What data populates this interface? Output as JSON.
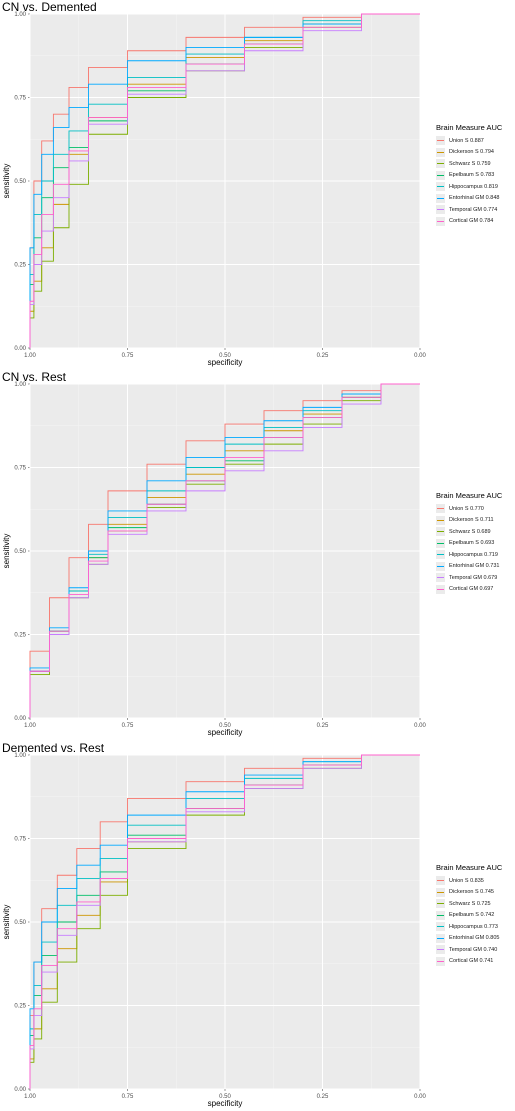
{
  "chart_data": [
    {
      "type": "line",
      "title": "CN vs. Demented",
      "xlabel": "specificity",
      "ylabel": "sensitivity",
      "xlim": [
        1.0,
        0.0
      ],
      "ylim": [
        0.0,
        1.0
      ],
      "x_ticks": [
        "1.00",
        "0.75",
        "0.50",
        "0.25",
        "0.00"
      ],
      "y_ticks": [
        "0.00",
        "0.25",
        "0.50",
        "0.75",
        "1.00"
      ],
      "grid": true,
      "legend_position": "right",
      "legend_title": "Brain Measure AUC",
      "series": [
        {
          "name": "Union S 0.887",
          "color": "#F8766D",
          "x": [
            1,
            0.99,
            0.97,
            0.94,
            0.9,
            0.85,
            0.75,
            0.6,
            0.45,
            0.3,
            0.15,
            0
          ],
          "y": [
            0,
            0.3,
            0.5,
            0.62,
            0.7,
            0.78,
            0.84,
            0.89,
            0.93,
            0.96,
            0.99,
            1
          ]
        },
        {
          "name": "Dickerson S 0.794",
          "color": "#CD9600",
          "x": [
            1,
            0.99,
            0.97,
            0.94,
            0.9,
            0.85,
            0.75,
            0.6,
            0.45,
            0.3,
            0.15,
            0
          ],
          "y": [
            0,
            0.11,
            0.2,
            0.3,
            0.43,
            0.58,
            0.69,
            0.79,
            0.87,
            0.92,
            0.97,
            1
          ]
        },
        {
          "name": "Schwarz S 0.759",
          "color": "#7CAE00",
          "x": [
            1,
            0.99,
            0.97,
            0.94,
            0.9,
            0.85,
            0.75,
            0.6,
            0.45,
            0.3,
            0.15,
            0
          ],
          "y": [
            0,
            0.09,
            0.17,
            0.26,
            0.36,
            0.49,
            0.64,
            0.75,
            0.83,
            0.9,
            0.96,
            1
          ]
        },
        {
          "name": "Epelbaum S 0.783",
          "color": "#00BE67",
          "x": [
            1,
            0.99,
            0.97,
            0.94,
            0.9,
            0.85,
            0.75,
            0.6,
            0.45,
            0.3,
            0.15,
            0
          ],
          "y": [
            0,
            0.19,
            0.33,
            0.45,
            0.54,
            0.6,
            0.68,
            0.77,
            0.85,
            0.91,
            0.97,
            1
          ]
        },
        {
          "name": "Hippocampus 0.819",
          "color": "#00BFC4",
          "x": [
            1,
            0.99,
            0.97,
            0.94,
            0.9,
            0.85,
            0.75,
            0.6,
            0.45,
            0.3,
            0.15,
            0
          ],
          "y": [
            0,
            0.22,
            0.4,
            0.5,
            0.58,
            0.65,
            0.73,
            0.81,
            0.88,
            0.93,
            0.98,
            1
          ]
        },
        {
          "name": "Entorhinal GM 0.848",
          "color": "#00A9FF",
          "x": [
            1,
            0.99,
            0.97,
            0.94,
            0.9,
            0.85,
            0.75,
            0.6,
            0.45,
            0.3,
            0.15,
            0
          ],
          "y": [
            0,
            0.3,
            0.46,
            0.58,
            0.66,
            0.72,
            0.79,
            0.86,
            0.9,
            0.93,
            0.97,
            1
          ]
        },
        {
          "name": "Temporal GM 0.774",
          "color": "#C77CFF",
          "x": [
            1,
            0.99,
            0.97,
            0.94,
            0.9,
            0.85,
            0.75,
            0.6,
            0.45,
            0.3,
            0.15,
            0
          ],
          "y": [
            0,
            0.13,
            0.25,
            0.35,
            0.45,
            0.56,
            0.67,
            0.76,
            0.83,
            0.89,
            0.95,
            1
          ]
        },
        {
          "name": "Cortical GM 0.784",
          "color": "#FF61CC",
          "x": [
            1,
            0.99,
            0.97,
            0.94,
            0.9,
            0.85,
            0.75,
            0.6,
            0.45,
            0.3,
            0.15,
            0
          ],
          "y": [
            0,
            0.14,
            0.28,
            0.4,
            0.49,
            0.59,
            0.69,
            0.78,
            0.85,
            0.91,
            0.96,
            1
          ]
        }
      ]
    },
    {
      "type": "line",
      "title": "CN vs. Rest",
      "xlabel": "specificity",
      "ylabel": "sensitivity",
      "xlim": [
        1.0,
        0.0
      ],
      "ylim": [
        0.0,
        1.0
      ],
      "x_ticks": [
        "1.00",
        "0.75",
        "0.50",
        "0.25",
        "0.00"
      ],
      "y_ticks": [
        "0.00",
        "0.25",
        "0.50",
        "0.75",
        "1.00"
      ],
      "grid": true,
      "legend_position": "right",
      "legend_title": "Brain Measure AUC",
      "series": [
        {
          "name": "Union S 0.770",
          "color": "#F8766D",
          "x": [
            1,
            0.95,
            0.9,
            0.85,
            0.8,
            0.7,
            0.6,
            0.5,
            0.4,
            0.3,
            0.2,
            0.1,
            0
          ],
          "y": [
            0,
            0.2,
            0.36,
            0.48,
            0.58,
            0.68,
            0.76,
            0.83,
            0.88,
            0.92,
            0.95,
            0.98,
            1
          ]
        },
        {
          "name": "Dickerson S 0.711",
          "color": "#CD9600",
          "x": [
            1,
            0.95,
            0.9,
            0.85,
            0.8,
            0.7,
            0.6,
            0.5,
            0.4,
            0.3,
            0.2,
            0.1,
            0
          ],
          "y": [
            0,
            0.14,
            0.26,
            0.38,
            0.48,
            0.58,
            0.66,
            0.73,
            0.8,
            0.86,
            0.91,
            0.96,
            1
          ]
        },
        {
          "name": "Schwarz S 0.689",
          "color": "#7CAE00",
          "x": [
            1,
            0.95,
            0.9,
            0.85,
            0.8,
            0.7,
            0.6,
            0.5,
            0.4,
            0.3,
            0.2,
            0.1,
            0
          ],
          "y": [
            0,
            0.13,
            0.25,
            0.36,
            0.46,
            0.56,
            0.63,
            0.7,
            0.76,
            0.82,
            0.88,
            0.95,
            1
          ]
        },
        {
          "name": "Epelbaum S 0.693",
          "color": "#00BE67",
          "x": [
            1,
            0.95,
            0.9,
            0.85,
            0.8,
            0.7,
            0.6,
            0.5,
            0.4,
            0.3,
            0.2,
            0.1,
            0
          ],
          "y": [
            0,
            0.14,
            0.26,
            0.38,
            0.48,
            0.57,
            0.64,
            0.71,
            0.77,
            0.84,
            0.9,
            0.96,
            1
          ]
        },
        {
          "name": "Hippocampus 0.719",
          "color": "#00BFC4",
          "x": [
            1,
            0.95,
            0.9,
            0.85,
            0.8,
            0.7,
            0.6,
            0.5,
            0.4,
            0.3,
            0.2,
            0.1,
            0
          ],
          "y": [
            0,
            0.14,
            0.26,
            0.38,
            0.49,
            0.6,
            0.68,
            0.75,
            0.82,
            0.87,
            0.92,
            0.97,
            1
          ]
        },
        {
          "name": "Entorhinal GM 0.731",
          "color": "#00A9FF",
          "x": [
            1,
            0.95,
            0.9,
            0.85,
            0.8,
            0.7,
            0.6,
            0.5,
            0.4,
            0.3,
            0.2,
            0.1,
            0
          ],
          "y": [
            0,
            0.15,
            0.27,
            0.39,
            0.5,
            0.62,
            0.71,
            0.78,
            0.84,
            0.89,
            0.93,
            0.97,
            1
          ]
        },
        {
          "name": "Temporal GM 0.679",
          "color": "#C77CFF",
          "x": [
            1,
            0.95,
            0.9,
            0.85,
            0.8,
            0.7,
            0.6,
            0.5,
            0.4,
            0.3,
            0.2,
            0.1,
            0
          ],
          "y": [
            0,
            0.14,
            0.25,
            0.36,
            0.46,
            0.55,
            0.62,
            0.68,
            0.74,
            0.8,
            0.87,
            0.94,
            1
          ]
        },
        {
          "name": "Cortical GM 0.697",
          "color": "#FF61CC",
          "x": [
            1,
            0.95,
            0.9,
            0.85,
            0.8,
            0.7,
            0.6,
            0.5,
            0.4,
            0.3,
            0.2,
            0.1,
            0
          ],
          "y": [
            0,
            0.14,
            0.26,
            0.37,
            0.47,
            0.56,
            0.64,
            0.71,
            0.78,
            0.84,
            0.9,
            0.96,
            1
          ]
        }
      ]
    },
    {
      "type": "line",
      "title": "Demented vs. Rest",
      "xlabel": "specificity",
      "ylabel": "sensitivity",
      "xlim": [
        1.0,
        0.0
      ],
      "ylim": [
        0.0,
        1.0
      ],
      "x_ticks": [
        "1.00",
        "0.75",
        "0.50",
        "0.25",
        "0.00"
      ],
      "y_ticks": [
        "0.00",
        "0.25",
        "0.50",
        "0.75",
        "1.00"
      ],
      "grid": true,
      "legend_position": "right",
      "legend_title": "Brain Measure AUC",
      "series": [
        {
          "name": "Union S 0.835",
          "color": "#F8766D",
          "x": [
            1,
            0.99,
            0.97,
            0.93,
            0.88,
            0.82,
            0.75,
            0.6,
            0.45,
            0.3,
            0.15,
            0
          ],
          "y": [
            0,
            0.22,
            0.38,
            0.54,
            0.64,
            0.72,
            0.8,
            0.87,
            0.92,
            0.96,
            0.99,
            1
          ]
        },
        {
          "name": "Dickerson S 0.745",
          "color": "#CD9600",
          "x": [
            1,
            0.99,
            0.97,
            0.93,
            0.88,
            0.82,
            0.75,
            0.6,
            0.45,
            0.3,
            0.15,
            0
          ],
          "y": [
            0,
            0.09,
            0.18,
            0.3,
            0.42,
            0.52,
            0.62,
            0.74,
            0.84,
            0.91,
            0.97,
            1
          ]
        },
        {
          "name": "Schwarz S 0.725",
          "color": "#7CAE00",
          "x": [
            1,
            0.99,
            0.97,
            0.93,
            0.88,
            0.82,
            0.75,
            0.6,
            0.45,
            0.3,
            0.15,
            0
          ],
          "y": [
            0,
            0.08,
            0.15,
            0.26,
            0.38,
            0.48,
            0.58,
            0.72,
            0.82,
            0.9,
            0.96,
            1
          ]
        },
        {
          "name": "Epelbaum S 0.742",
          "color": "#00BE67",
          "x": [
            1,
            0.99,
            0.97,
            0.93,
            0.88,
            0.82,
            0.75,
            0.6,
            0.45,
            0.3,
            0.15,
            0
          ],
          "y": [
            0,
            0.16,
            0.28,
            0.4,
            0.5,
            0.58,
            0.65,
            0.76,
            0.84,
            0.91,
            0.97,
            1
          ]
        },
        {
          "name": "Hippocampus 0.773",
          "color": "#00BFC4",
          "x": [
            1,
            0.99,
            0.97,
            0.93,
            0.88,
            0.82,
            0.75,
            0.6,
            0.45,
            0.3,
            0.15,
            0
          ],
          "y": [
            0,
            0.18,
            0.31,
            0.44,
            0.55,
            0.63,
            0.69,
            0.79,
            0.87,
            0.93,
            0.98,
            1
          ]
        },
        {
          "name": "Entorhinal GM 0.805",
          "color": "#00A9FF",
          "x": [
            1,
            0.99,
            0.97,
            0.93,
            0.88,
            0.82,
            0.75,
            0.6,
            0.45,
            0.3,
            0.15,
            0
          ],
          "y": [
            0,
            0.24,
            0.38,
            0.5,
            0.6,
            0.67,
            0.73,
            0.82,
            0.89,
            0.94,
            0.98,
            1
          ]
        },
        {
          "name": "Temporal GM 0.740",
          "color": "#C77CFF",
          "x": [
            1,
            0.99,
            0.97,
            0.93,
            0.88,
            0.82,
            0.75,
            0.6,
            0.45,
            0.3,
            0.15,
            0
          ],
          "y": [
            0,
            0.12,
            0.22,
            0.35,
            0.46,
            0.55,
            0.63,
            0.74,
            0.83,
            0.9,
            0.96,
            1
          ]
        },
        {
          "name": "Cortical GM 0.741",
          "color": "#FF61CC",
          "x": [
            1,
            0.99,
            0.97,
            0.93,
            0.88,
            0.82,
            0.75,
            0.6,
            0.45,
            0.3,
            0.15,
            0
          ],
          "y": [
            0,
            0.13,
            0.24,
            0.37,
            0.48,
            0.56,
            0.63,
            0.75,
            0.84,
            0.91,
            0.97,
            1
          ]
        }
      ]
    }
  ]
}
